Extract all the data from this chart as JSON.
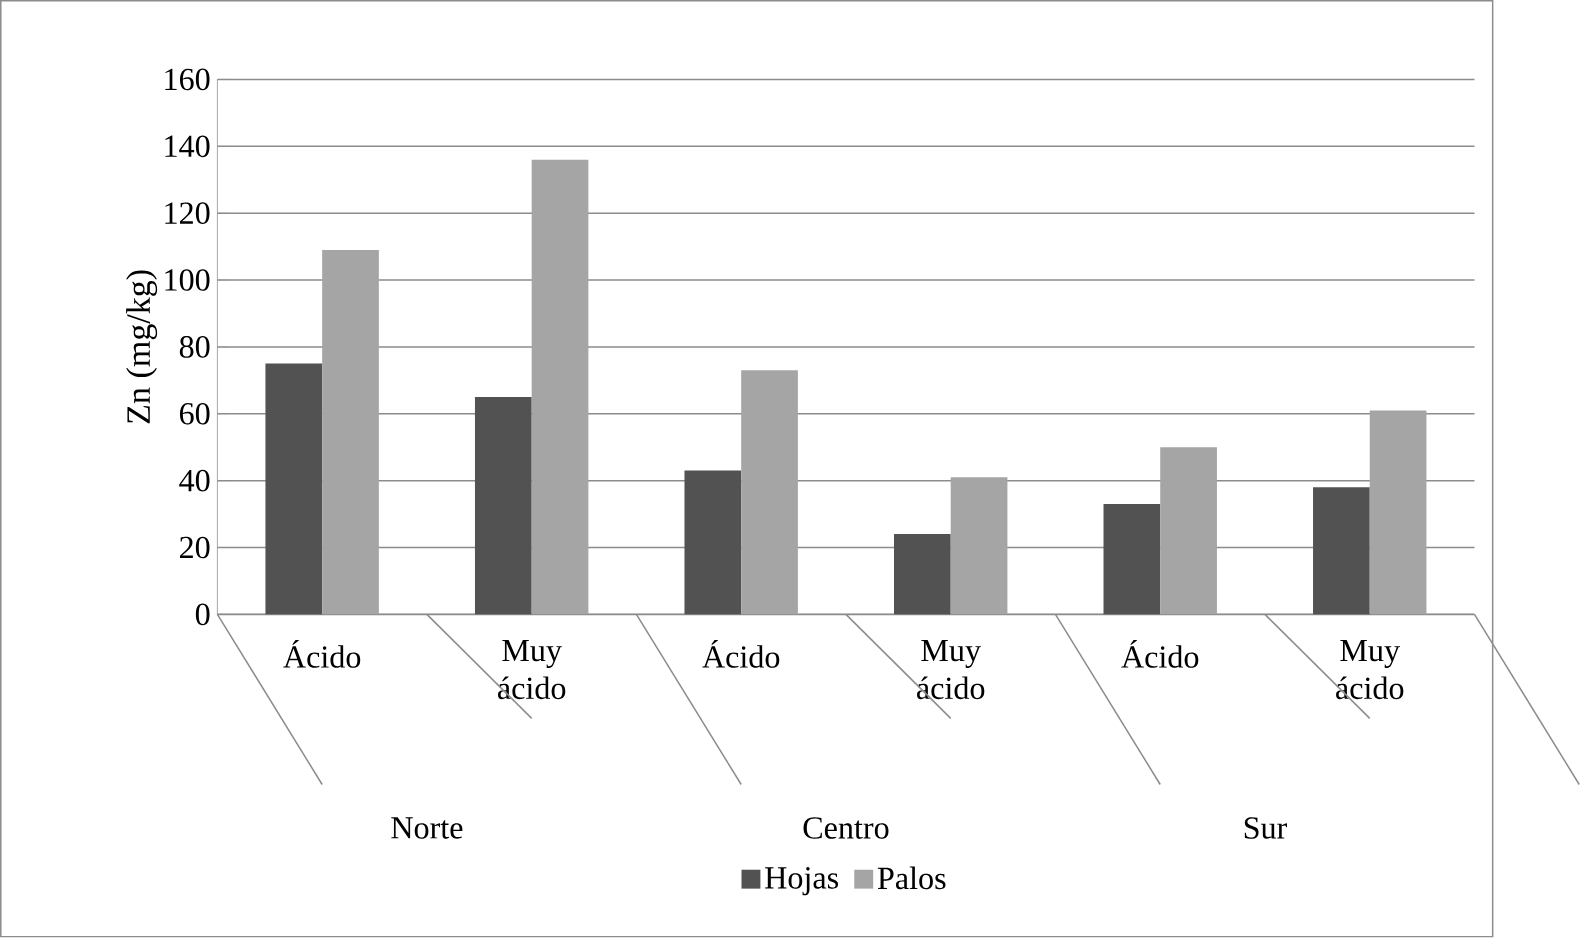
{
  "chart_data": {
    "type": "bar",
    "ylabel": "Zn (mg/kg)",
    "categories": [
      "Ácido",
      "Muy ácido",
      "Ácido",
      "Muy ácido",
      "Ácido",
      "Muy ácido"
    ],
    "annotations": [
      "Norte",
      "Centro",
      "Sur"
    ],
    "series": [
      {
        "name": "Hojas",
        "color": "#525252",
        "values": [
          75,
          65,
          43,
          24,
          33,
          38
        ]
      },
      {
        "name": "Palos",
        "color": "#a5a5a5",
        "values": [
          109,
          136,
          73,
          41,
          50,
          61
        ]
      }
    ],
    "ylim": [
      0,
      160
    ],
    "yticks": [
      0,
      20,
      40,
      60,
      80,
      100,
      120,
      140,
      160
    ],
    "grid": "y",
    "legend": "bottom"
  }
}
